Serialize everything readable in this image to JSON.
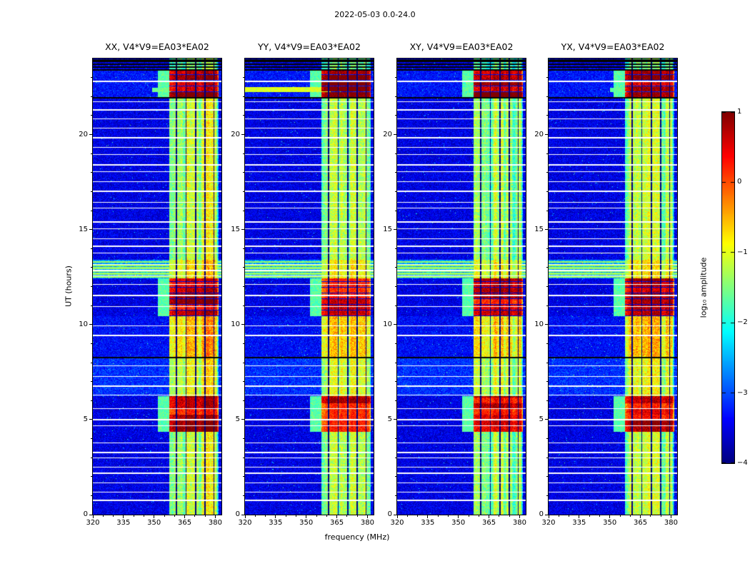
{
  "chart_data": {
    "type": "heatmap",
    "title": "2022-05-03 0.0-24.0",
    "xlabel": "frequency (MHz)",
    "ylabel": "UT (hours)",
    "x_range": [
      320,
      383
    ],
    "y_range": [
      0,
      24
    ],
    "x_ticks": [
      320,
      335,
      350,
      365,
      380
    ],
    "x_minor_step": 5,
    "y_ticks": [
      0,
      5,
      10,
      15,
      20
    ],
    "y_minor_step": 1,
    "panels": [
      {
        "id": "xx",
        "title": "XX, V4*V9=EA03*EA02",
        "streaks": [
          {
            "t0": 22.25,
            "t1": 22.45,
            "f0": 349,
            "f1": 358,
            "level": -1.6
          }
        ]
      },
      {
        "id": "yy",
        "title": "YY, V4*V9=EA03*EA02",
        "streaks": [
          {
            "t0": 22.25,
            "t1": 22.5,
            "f0": 320,
            "f1": 362,
            "level": -1.05
          }
        ]
      },
      {
        "id": "xy",
        "title": "XY, V4*V9=EA03*EA02",
        "streaks": [
          {
            "t0": 22.28,
            "t1": 22.42,
            "f0": 352,
            "f1": 358,
            "level": -1.8
          }
        ]
      },
      {
        "id": "yx",
        "title": "YX, V4*V9=EA03*EA02",
        "streaks": [
          {
            "t0": 22.25,
            "t1": 22.45,
            "f0": 350,
            "f1": 358,
            "level": -1.7
          }
        ]
      }
    ],
    "colorbar": {
      "label": "log₁₀ amplitude",
      "ticks": [
        1,
        0,
        -1,
        -2,
        -3,
        -4
      ],
      "vmin": -4,
      "vmax": 1,
      "colormap": "jet"
    },
    "spectrogram": {
      "noise_floor": -3.5,
      "rfi_band": {
        "f0": 357.5,
        "f1": 381.5
      },
      "comb_dark_freqs": [
        360.9,
        365.7,
        370.4,
        374.9,
        379.3
      ],
      "block_h": 0.3,
      "band_intervals": [
        {
          "t0": 0.0,
          "t1": 4.35,
          "level": -1.95
        },
        {
          "t0": 4.35,
          "t1": 6.25,
          "level": 0.3,
          "burst": true
        },
        {
          "t0": 6.25,
          "t1": 8.3,
          "level": -1.75
        },
        {
          "t0": 8.3,
          "t1": 10.45,
          "level": -1.35
        },
        {
          "t0": 10.45,
          "t1": 12.45,
          "level": 0.3,
          "burst": true
        },
        {
          "t0": 12.45,
          "t1": 13.4,
          "level": -1.6
        },
        {
          "t0": 13.4,
          "t1": 21.95,
          "level": -1.95
        },
        {
          "t0": 21.95,
          "t1": 23.4,
          "level": 0.65,
          "burst": true
        },
        {
          "t0": 23.4,
          "t1": 24.0,
          "level": -2.3
        }
      ],
      "bg_intervals": [
        {
          "t0": 6.25,
          "t1": 8.3,
          "level": -3.15
        },
        {
          "t0": 8.3,
          "t1": 10.45,
          "level": -3.35
        },
        {
          "t0": 12.45,
          "t1": 13.4,
          "level": -2.6
        },
        {
          "t0": 21.95,
          "t1": 23.4,
          "level": -3.3
        }
      ],
      "white_lines": [
        0.8,
        1.2,
        1.7,
        2.2,
        2.5,
        3.0,
        3.3,
        3.8,
        4.7,
        5.05,
        5.6,
        6.3,
        6.8,
        7.3,
        7.85,
        9.45,
        9.95,
        10.95,
        11.55,
        12.15,
        12.6,
        12.9,
        13.2,
        13.8,
        14.15,
        14.55,
        15.05,
        15.45,
        16.15,
        16.45,
        17.05,
        17.55,
        18.05,
        18.45,
        18.95,
        19.35,
        19.85,
        20.35,
        20.85,
        21.35,
        21.75,
        21.92,
        22.85
      ],
      "black_lines": [
        8.3,
        21.97,
        23.42,
        23.6,
        23.75,
        23.87,
        23.96
      ],
      "cyan_rows": [
        12.52,
        12.68,
        12.82,
        12.97,
        13.12,
        13.3
      ]
    }
  }
}
